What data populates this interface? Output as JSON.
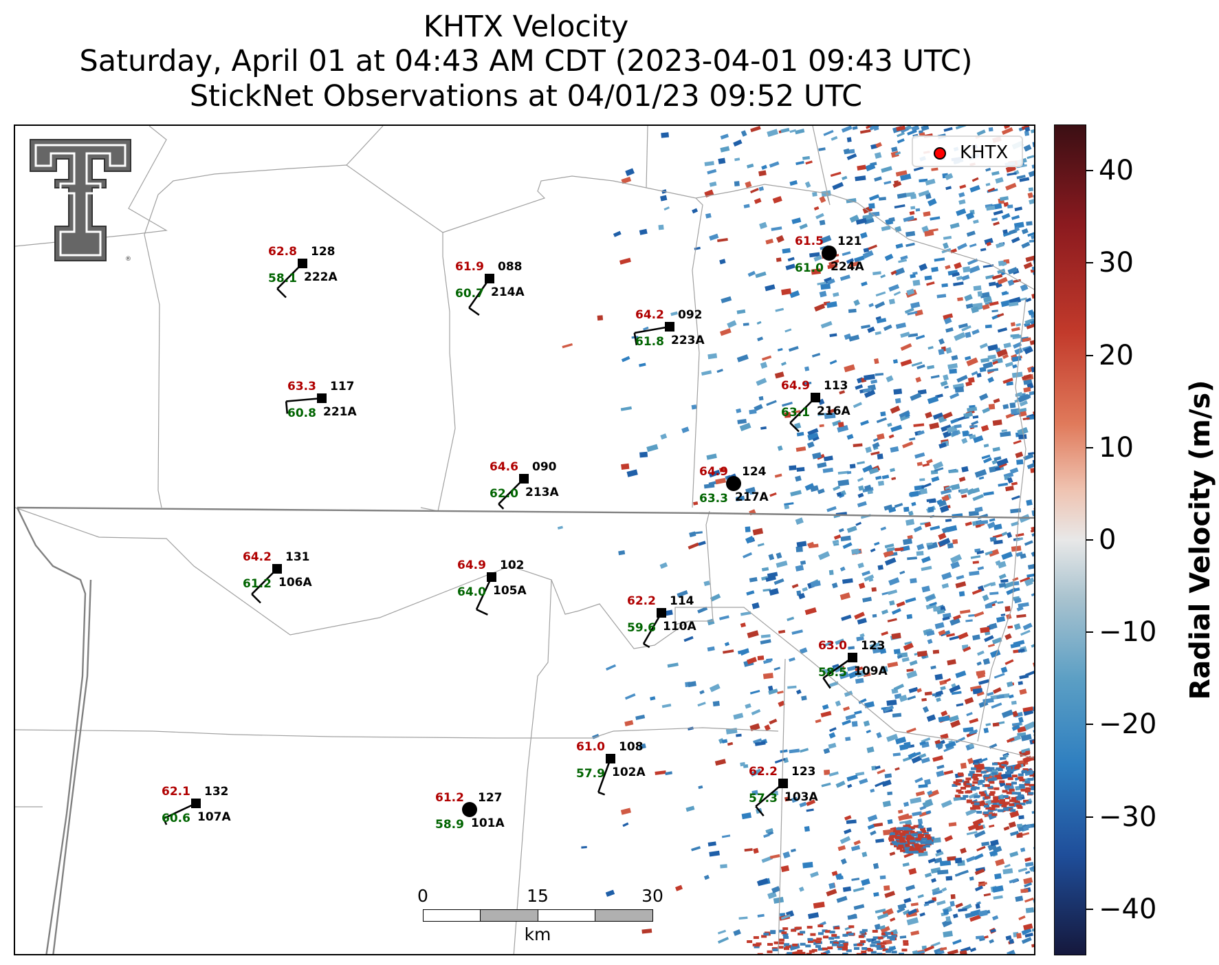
{
  "title": {
    "line1": "KHTX Velocity",
    "line2": "Saturday, April 01 at 04:43 AM CDT (2023-04-01 09:43 UTC)",
    "line3": "StickNet Observations at 04/01/23 09:52 UTC"
  },
  "legend": {
    "label": "KHTX",
    "marker_color": "#ff0000"
  },
  "colorbar": {
    "label": "Radial Velocity (m/s)",
    "ticks": [
      "40",
      "30",
      "20",
      "10",
      "0",
      "−10",
      "−20",
      "−30",
      "−40"
    ],
    "range": [
      -45,
      45
    ]
  },
  "scalebar": {
    "ticks": [
      "0",
      "15",
      "30"
    ],
    "unit": "km"
  },
  "logo": {
    "name": "texas-tech-double-t-logo"
  },
  "colors": {
    "temp": "#b00000",
    "dewpoint": "#006400",
    "station": "#000000"
  },
  "stations": [
    {
      "temp": "62.8",
      "dew": "58.1",
      "pres": "128",
      "id": "222A",
      "dir": 225,
      "kt": 10
    },
    {
      "temp": "61.9",
      "dew": "60.7",
      "pres": "088",
      "id": "214A",
      "dir": 215,
      "kt": 10
    },
    {
      "temp": "64.2",
      "dew": "61.8",
      "pres": "092",
      "id": "223A",
      "dir": 260,
      "kt": 10
    },
    {
      "temp": "61.5",
      "dew": "61.0",
      "pres": "121",
      "id": "224A",
      "dir": 0,
      "kt": 0
    },
    {
      "temp": "63.3",
      "dew": "60.8",
      "pres": "117",
      "id": "221A",
      "dir": 265,
      "kt": 10
    },
    {
      "temp": "64.9",
      "dew": "63.1",
      "pres": "113",
      "id": "216A",
      "dir": 225,
      "kt": 10
    },
    {
      "temp": "64.6",
      "dew": "62.0",
      "pres": "090",
      "id": "213A",
      "dir": 225,
      "kt": 5
    },
    {
      "temp": "64.9",
      "dew": "63.3",
      "pres": "124",
      "id": "217A",
      "dir": 0,
      "kt": 0
    },
    {
      "temp": "64.2",
      "dew": "61.2",
      "pres": "131",
      "id": "106A",
      "dir": 225,
      "kt": 10
    },
    {
      "temp": "64.9",
      "dew": "64.0",
      "pres": "102",
      "id": "105A",
      "dir": 205,
      "kt": 10
    },
    {
      "temp": "62.2",
      "dew": "59.6",
      "pres": "114",
      "id": "110A",
      "dir": 210,
      "kt": 5
    },
    {
      "temp": "63.0",
      "dew": "58.5",
      "pres": "123",
      "id": "109A",
      "dir": 235,
      "kt": 10
    },
    {
      "temp": "61.0",
      "dew": "57.9",
      "pres": "108",
      "id": "102A",
      "dir": 200,
      "kt": 5
    },
    {
      "temp": "62.1",
      "dew": "60.6",
      "pres": "132",
      "id": "107A",
      "dir": 245,
      "kt": 5
    },
    {
      "temp": "61.2",
      "dew": "58.9",
      "pres": "127",
      "id": "101A",
      "dir": 0,
      "kt": 0
    },
    {
      "temp": "62.2",
      "dew": "57.3",
      "pres": "123",
      "id": "103A",
      "dir": 230,
      "kt": 10
    }
  ]
}
